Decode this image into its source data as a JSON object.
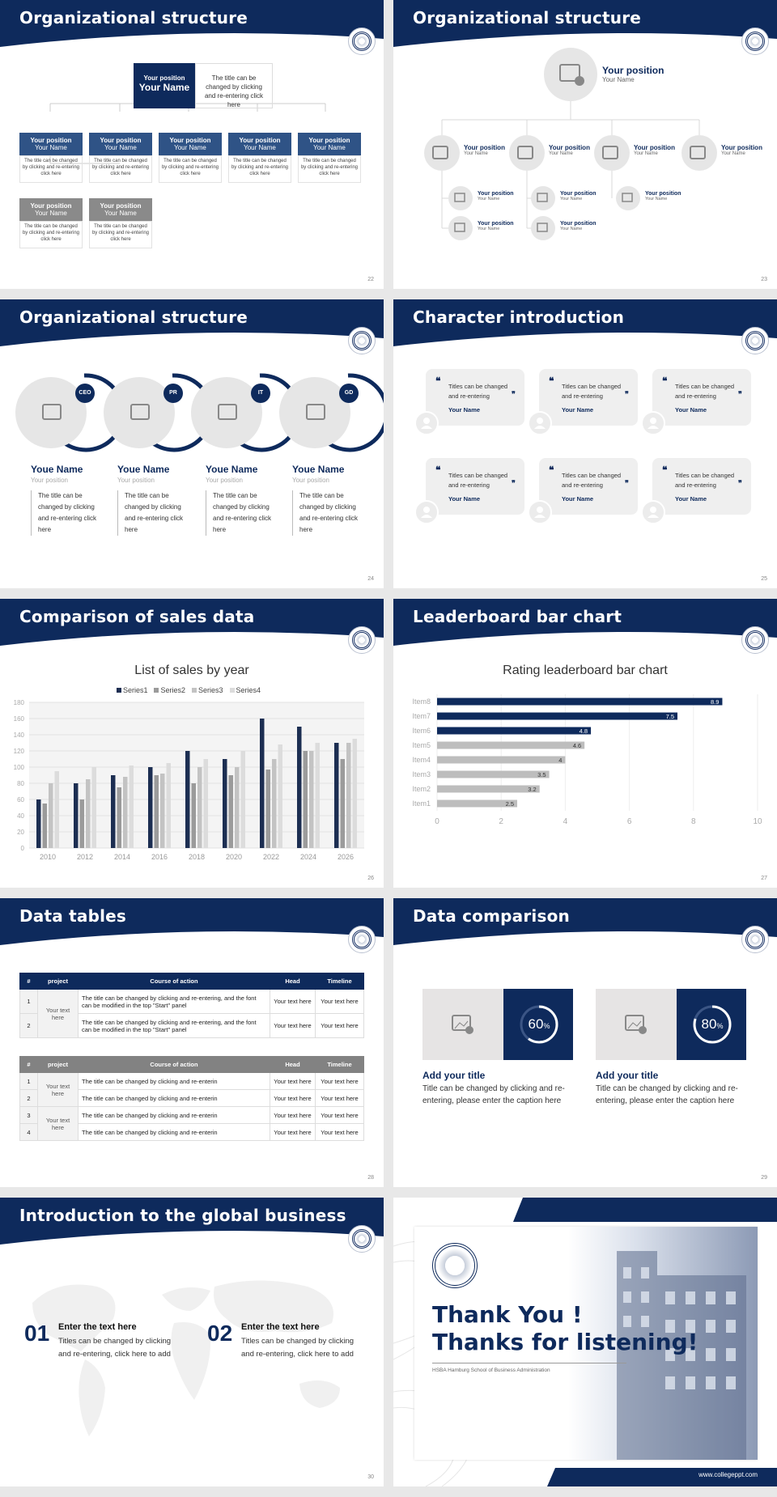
{
  "slides": {
    "s22": {
      "title": "Organizational structure",
      "page": "22",
      "top": {
        "position": "Your position",
        "name": "Your Name",
        "desc": "The title can be changed by clicking and re-entering click here"
      },
      "row1": [
        {
          "position": "Your position",
          "name": "Your Name",
          "desc": "The title can be changed by clicking and re-entering click here"
        },
        {
          "position": "Your position",
          "name": "Your Name",
          "desc": "The title can be changed by clicking and re-entering click here"
        },
        {
          "position": "Your position",
          "name": "Your Name",
          "desc": "The title can be changed by clicking and re-entering click here"
        },
        {
          "position": "Your position",
          "name": "Your Name",
          "desc": "The title can be changed by clicking and re-entering click here"
        },
        {
          "position": "Your position",
          "name": "Your Name",
          "desc": "The title can be changed by clicking and re-entering click here"
        }
      ],
      "row2": [
        {
          "position": "Your position",
          "name": "Your Name",
          "desc": "The title can be changed by clicking and re-entering click here"
        },
        {
          "position": "Your position",
          "name": "Your Name",
          "desc": "The title can be changed by clicking and re-entering click here"
        }
      ]
    },
    "s23": {
      "title": "Organizational structure",
      "page": "23",
      "top": {
        "position": "Your position",
        "name": "Your Name"
      },
      "mid": [
        {
          "position": "Your position",
          "name": "Your Name"
        },
        {
          "position": "Your position",
          "name": "Your Name"
        },
        {
          "position": "Your position",
          "name": "Your Name"
        },
        {
          "position": "Your position",
          "name": "Your Name"
        }
      ],
      "low": [
        {
          "position": "Your position",
          "name": "Your Name"
        },
        {
          "position": "Your position",
          "name": "Your Name"
        },
        {
          "position": "Your position",
          "name": "Your Name"
        },
        {
          "position": "Your position",
          "name": "Your Name"
        },
        {
          "position": "Your position",
          "name": "Your Name"
        }
      ]
    },
    "s24": {
      "title": "Organizational structure",
      "page": "24",
      "people": [
        {
          "badge": "CEO",
          "name": "Youe Name",
          "position": "Your position",
          "desc": "The title can be changed by clicking and re-entering click here"
        },
        {
          "badge": "PR",
          "name": "Youe Name",
          "position": "Your position",
          "desc": "The title can be changed by clicking and re-entering click here"
        },
        {
          "badge": "IT",
          "name": "Youe Name",
          "position": "Your position",
          "desc": "The title can be changed by clicking and re-entering click here"
        },
        {
          "badge": "GD",
          "name": "Youe Name",
          "position": "Your position",
          "desc": "The title can be changed by clicking and re-entering click here"
        }
      ]
    },
    "s25": {
      "title": "Character introduction",
      "page": "25",
      "cards": [
        {
          "quote": "Titles can be changed and re-entering",
          "name": "Your Name"
        },
        {
          "quote": "Titles can be changed and re-entering",
          "name": "Your Name"
        },
        {
          "quote": "Titles can be changed and re-entering",
          "name": "Your Name"
        },
        {
          "quote": "Titles can be changed and re-entering",
          "name": "Your Name"
        },
        {
          "quote": "Titles can be changed and re-entering",
          "name": "Your Name"
        },
        {
          "quote": "Titles can be changed and re-entering",
          "name": "Your Name"
        }
      ]
    },
    "s26": {
      "title": "Comparison of sales data",
      "page": "26"
    },
    "s27": {
      "title": "Leaderboard bar chart",
      "page": "27"
    },
    "s28": {
      "title": "Data tables",
      "page": "28",
      "t1": {
        "headers": [
          "#",
          "project",
          "Course of action",
          "Head",
          "Timeline"
        ],
        "project": "Your text here",
        "rows": [
          {
            "n": "1",
            "action": "The title can be changed by clicking and re-entering, and the font can be modified in the top \"Start\" panel",
            "head": "Your text here",
            "timeline": "Your text here"
          },
          {
            "n": "2",
            "action": "The title can be changed by clicking and re-entering, and the font can be modified in the top \"Start\" panel",
            "head": "Your text here",
            "timeline": "Your text here"
          }
        ]
      },
      "t2": {
        "headers": [
          "#",
          "project",
          "Course of action",
          "Head",
          "Timeline"
        ],
        "project_a": "Your text here",
        "project_b": "Your text here",
        "rows": [
          {
            "n": "1",
            "action": "The title can be changed by clicking and re-enterin",
            "head": "Your text here",
            "timeline": "Your text here"
          },
          {
            "n": "2",
            "action": "The title can be changed by clicking and re-enterin",
            "head": "Your text here",
            "timeline": "Your text here"
          },
          {
            "n": "3",
            "action": "The title can be changed by clicking and re-enterin",
            "head": "Your text here",
            "timeline": "Your text here"
          },
          {
            "n": "4",
            "action": "The title can be changed by clicking and re-enterin",
            "head": "Your text here",
            "timeline": "Your text here"
          }
        ]
      }
    },
    "s29": {
      "title": "Data comparison",
      "page": "29",
      "items": [
        {
          "percent": "60",
          "unit": "%",
          "value": 0.6,
          "heading": "Add your title",
          "body": "Title can be changed by clicking and re-entering, please enter the caption here"
        },
        {
          "percent": "80",
          "unit": "%",
          "value": 0.8,
          "heading": "Add your title",
          "body": "Title can be changed by clicking and re-entering, please enter the caption here"
        }
      ]
    },
    "s30": {
      "title": "Introduction to the global business",
      "page": "30",
      "items": [
        {
          "num": "01",
          "heading": "Enter the text here",
          "body": "Titles can be changed by clicking and re-entering, click here to add"
        },
        {
          "num": "02",
          "heading": "Enter the text here",
          "body": "Titles can be changed by clicking and re-entering, click here to add"
        }
      ]
    },
    "s31": {
      "line1": "Thank You !",
      "line2": "Thanks for listening!",
      "school": "HSBA Hamburg School of Business Administration",
      "url": "www.collegeppt.com"
    }
  },
  "chart_data": [
    {
      "type": "bar",
      "title": "List of sales by year",
      "categories": [
        "2010",
        "2012",
        "2014",
        "2016",
        "2018",
        "2020",
        "2022",
        "2024",
        "2026"
      ],
      "series": [
        {
          "name": "Series1",
          "values": [
            60,
            80,
            90,
            100,
            120,
            110,
            160,
            150,
            130
          ],
          "color": "#1c2e52"
        },
        {
          "name": "Series2",
          "values": [
            55,
            60,
            75,
            90,
            80,
            90,
            97,
            120,
            110
          ],
          "color": "#9b9b9b"
        },
        {
          "name": "Series3",
          "values": [
            80,
            85,
            88,
            92,
            100,
            100,
            110,
            120,
            130
          ],
          "color": "#c3c3c3"
        },
        {
          "name": "Series4",
          "values": [
            95,
            100,
            102,
            105,
            110,
            120,
            128,
            130,
            135
          ],
          "color": "#dcdcdc"
        }
      ],
      "ylim": [
        0,
        180
      ],
      "yticks": [
        "0",
        "20",
        "40",
        "60",
        "80",
        "100",
        "120",
        "140",
        "160",
        "180"
      ],
      "grid": true,
      "legend": "top"
    },
    {
      "type": "bar",
      "orientation": "horizontal",
      "title": "Rating leaderboard bar chart",
      "categories": [
        "Item8",
        "Item7",
        "Item6",
        "Item5",
        "Item4",
        "Item3",
        "Item2",
        "Item1"
      ],
      "values": [
        8.9,
        7.5,
        4.8,
        4.6,
        4,
        3.5,
        3.2,
        2.5
      ],
      "labels": [
        "8.9",
        "7.5",
        "4.8",
        "4.6",
        "4",
        "3.5",
        "3.2",
        "2.5"
      ],
      "highlight_color": "#0e2a5c",
      "other_color": "#bdbdbd",
      "xlim": [
        0,
        10
      ],
      "xticks": [
        "0",
        "2",
        "4",
        "6",
        "8",
        "10"
      ],
      "grid": true
    }
  ]
}
